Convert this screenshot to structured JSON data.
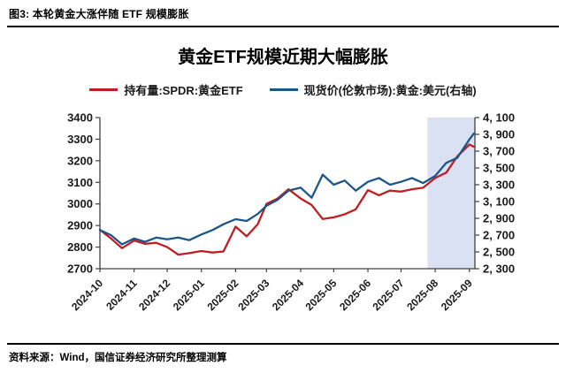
{
  "figure": {
    "header": "图3: 本轮黄金大涨伴随 ETF 规模膨胀",
    "source": "资料来源：Wind，国信证券经济研究所整理测算"
  },
  "chart_data": {
    "type": "line",
    "title": "黄金ETF规模近期大幅膨胀",
    "grid": false,
    "legend_position": "top",
    "x": [
      "2024-10-01",
      "2024-10-11",
      "2024-10-21",
      "2024-11-01",
      "2024-11-11",
      "2024-11-21",
      "2024-12-01",
      "2024-12-11",
      "2024-12-21",
      "2025-01-01",
      "2025-01-11",
      "2025-01-21",
      "2025-02-01",
      "2025-02-11",
      "2025-02-21",
      "2025-03-01",
      "2025-03-11",
      "2025-03-21",
      "2025-04-01",
      "2025-04-11",
      "2025-04-21",
      "2025-05-01",
      "2025-05-11",
      "2025-05-21",
      "2025-06-01",
      "2025-06-11",
      "2025-06-21",
      "2025-07-01",
      "2025-07-11",
      "2025-07-21",
      "2025-08-01",
      "2025-08-11",
      "2025-08-21",
      "2025-09-01",
      "2025-09-05"
    ],
    "x_domain_end": "2025-09-06",
    "x_ticks": [
      "2024-10",
      "2024-11",
      "2024-12",
      "2025-01",
      "2025-02",
      "2025-03",
      "2025-04",
      "2025-05",
      "2025-06",
      "2025-07",
      "2025-08",
      "2025-09"
    ],
    "series": [
      {
        "name": "持有量:SPDR:黄金ETF",
        "axis": "left",
        "color": "#bf1e24",
        "values": [
          2880,
          2840,
          2795,
          2830,
          2815,
          2820,
          2800,
          2765,
          2772,
          2782,
          2775,
          2780,
          2895,
          2850,
          2905,
          3000,
          3025,
          3068,
          3025,
          2995,
          2930,
          2938,
          2952,
          2975,
          3064,
          3040,
          3062,
          3057,
          3068,
          3075,
          3120,
          3145,
          3220,
          3275,
          3265
        ]
      },
      {
        "name": "现货价(伦敦市场):黄金:美元(右轴)",
        "axis": "right",
        "color": "#1d5689",
        "values": [
          2760,
          2700,
          2590,
          2660,
          2620,
          2670,
          2650,
          2672,
          2640,
          2707,
          2760,
          2830,
          2890,
          2868,
          2950,
          3050,
          3120,
          3230,
          3265,
          3145,
          3420,
          3300,
          3350,
          3230,
          3335,
          3380,
          3300,
          3335,
          3380,
          3320,
          3405,
          3560,
          3620,
          3840,
          3910
        ]
      }
    ],
    "left_axis": {
      "min": 2700,
      "max": 3400,
      "ticks": [
        3400,
        3300,
        3200,
        3100,
        3000,
        2900,
        2800,
        2700
      ]
    },
    "right_axis": {
      "min": 2300,
      "max": 4100,
      "ticks": [
        4100,
        3900,
        3700,
        3500,
        3300,
        3100,
        2900,
        2700,
        2500,
        2300
      ],
      "tick_labels": [
        "4, 100",
        "3, 900",
        "3, 700",
        "3, 500",
        "3, 300",
        "3, 100",
        "2, 900",
        "2, 700",
        "2, 500",
        "2, 300"
      ]
    },
    "highlight": {
      "start": "2025-07-25",
      "end": "2025-09-06",
      "color": "#d9e1f2"
    }
  }
}
